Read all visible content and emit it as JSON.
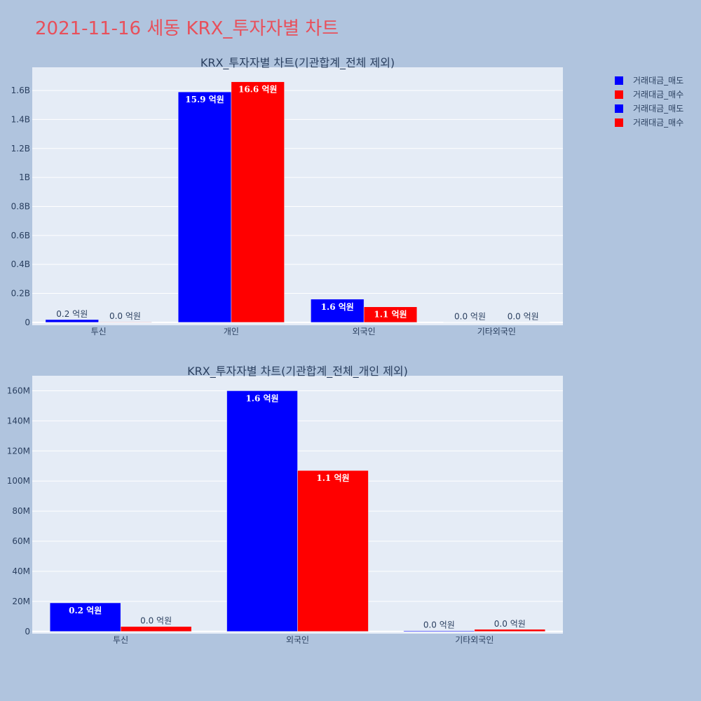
{
  "page_title": "2021-11-16 세동 KRX_투자자별 차트",
  "legend": [
    {
      "label": "거래대금_매도",
      "color": "#0000ff"
    },
    {
      "label": "거래대금_매수",
      "color": "#ff0000"
    },
    {
      "label": "거래대금_매도",
      "color": "#0000ff"
    },
    {
      "label": "거래대금_매수",
      "color": "#ff0000"
    }
  ],
  "chart_data": [
    {
      "type": "bar",
      "title": "KRX_투자자별 차트(기관합계_전체 제외)",
      "categories": [
        "투신",
        "개인",
        "외국인",
        "기타외국인"
      ],
      "series": [
        {
          "name": "거래대금_매도",
          "color": "#0000ff",
          "values": [
            19000000,
            1590000000,
            160000000,
            1000000
          ],
          "labels": [
            "0.2 억원",
            "15.9 억원",
            "1.6 억원",
            "0.0 억원"
          ]
        },
        {
          "name": "거래대금_매수",
          "color": "#ff0000",
          "values": [
            3000000,
            1660000000,
            107000000,
            1000000
          ],
          "labels": [
            "0.0 억원",
            "16.6 억원",
            "1.1 억원",
            "0.0 억원"
          ]
        }
      ],
      "yticks": [
        {
          "value": 0,
          "label": "0"
        },
        {
          "value": 200000000,
          "label": "0.2B"
        },
        {
          "value": 400000000,
          "label": "0.4B"
        },
        {
          "value": 600000000,
          "label": "0.6B"
        },
        {
          "value": 800000000,
          "label": "0.8B"
        },
        {
          "value": 1000000000,
          "label": "1B"
        },
        {
          "value": 1200000000,
          "label": "1.2B"
        },
        {
          "value": 1400000000,
          "label": "1.4B"
        },
        {
          "value": 1600000000,
          "label": "1.6B"
        }
      ],
      "ylim": [
        -20000000,
        1760000000
      ],
      "grid": true
    },
    {
      "type": "bar",
      "title": "KRX_투자자별 차트(기관합계_전체_개인 제외)",
      "categories": [
        "투신",
        "외국인",
        "기타외국인"
      ],
      "series": [
        {
          "name": "거래대금_매도",
          "color": "#0000ff",
          "values": [
            19000000,
            160000000,
            500000
          ],
          "labels": [
            "0.2 억원",
            "1.6 억원",
            "0.0 억원"
          ]
        },
        {
          "name": "거래대금_매수",
          "color": "#ff0000",
          "values": [
            3300000,
            107000000,
            1400000
          ],
          "labels": [
            "0.0 억원",
            "1.1 억원",
            "0.0 억원"
          ]
        }
      ],
      "yticks": [
        {
          "value": 0,
          "label": "0"
        },
        {
          "value": 20000000,
          "label": "20M"
        },
        {
          "value": 40000000,
          "label": "40M"
        },
        {
          "value": 60000000,
          "label": "60M"
        },
        {
          "value": 80000000,
          "label": "80M"
        },
        {
          "value": 100000000,
          "label": "100M"
        },
        {
          "value": 120000000,
          "label": "120M"
        },
        {
          "value": 140000000,
          "label": "140M"
        },
        {
          "value": 160000000,
          "label": "160M"
        }
      ],
      "ylim": [
        -1500000,
        170000000
      ],
      "grid": true
    }
  ]
}
